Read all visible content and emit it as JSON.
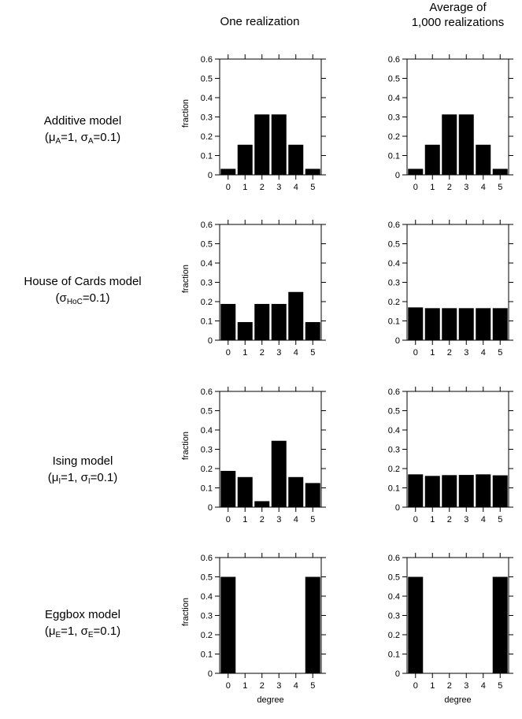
{
  "columns": [
    "One realization",
    "Average of\n1,000 realizations"
  ],
  "column_lines": [
    [
      "One realization"
    ],
    [
      "Average of",
      "1,000 realizations"
    ]
  ],
  "rows": [
    {
      "title": "Additive model",
      "params": [
        {
          "sym": "μ",
          "sub": "A",
          "val": "=1"
        },
        {
          "sym": "σ",
          "sub": "A",
          "val": "=0.1"
        }
      ]
    },
    {
      "title": "House of Cards model",
      "params": [
        {
          "sym": "σ",
          "sub": "HoC",
          "val": "=0.1"
        }
      ]
    },
    {
      "title": "Ising model",
      "params": [
        {
          "sym": "μ",
          "sub": "I",
          "val": "=1"
        },
        {
          "sym": "σ",
          "sub": "I",
          "val": "=0.1"
        }
      ]
    },
    {
      "title": "Eggbox model",
      "params": [
        {
          "sym": "μ",
          "sub": "E",
          "val": "=1"
        },
        {
          "sym": "σ",
          "sub": "E",
          "val": "=0.1"
        }
      ]
    }
  ],
  "chart_data": [
    {
      "type": "bar",
      "panel": "Additive model / One realization",
      "categories": [
        "0",
        "1",
        "2",
        "3",
        "4",
        "5"
      ],
      "values": [
        0.031,
        0.156,
        0.313,
        0.313,
        0.156,
        0.031
      ],
      "ylabel": "fraction",
      "xlabel": "",
      "ylim": [
        0,
        0.6
      ],
      "yticks": [
        "0",
        "0.1",
        "0.2",
        "0.3",
        "0.4",
        "0.5",
        "0.6"
      ]
    },
    {
      "type": "bar",
      "panel": "Additive model / Average of 1,000 realizations",
      "categories": [
        "0",
        "1",
        "2",
        "3",
        "4",
        "5"
      ],
      "values": [
        0.031,
        0.156,
        0.313,
        0.313,
        0.156,
        0.031
      ],
      "ylabel": "",
      "xlabel": "",
      "ylim": [
        0,
        0.6
      ],
      "yticks": [
        "0",
        "0.1",
        "0.2",
        "0.3",
        "0.4",
        "0.5",
        "0.6"
      ]
    },
    {
      "type": "bar",
      "panel": "House of Cards model / One realization",
      "categories": [
        "0",
        "1",
        "2",
        "3",
        "4",
        "5"
      ],
      "values": [
        0.188,
        0.094,
        0.188,
        0.188,
        0.25,
        0.094
      ],
      "ylabel": "fraction",
      "xlabel": "",
      "ylim": [
        0,
        0.6
      ],
      "yticks": [
        "0",
        "0.1",
        "0.2",
        "0.3",
        "0.4",
        "0.5",
        "0.6"
      ]
    },
    {
      "type": "bar",
      "panel": "House of Cards model / Average of 1,000 realizations",
      "categories": [
        "0",
        "1",
        "2",
        "3",
        "4",
        "5"
      ],
      "values": [
        0.17,
        0.166,
        0.166,
        0.166,
        0.166,
        0.166
      ],
      "ylabel": "",
      "xlabel": "",
      "ylim": [
        0,
        0.6
      ],
      "yticks": [
        "0",
        "0.1",
        "0.2",
        "0.3",
        "0.4",
        "0.5",
        "0.6"
      ]
    },
    {
      "type": "bar",
      "panel": "Ising model / One realization",
      "categories": [
        "0",
        "1",
        "2",
        "3",
        "4",
        "5"
      ],
      "values": [
        0.188,
        0.156,
        0.031,
        0.344,
        0.156,
        0.125
      ],
      "ylabel": "fraction",
      "xlabel": "",
      "ylim": [
        0,
        0.6
      ],
      "yticks": [
        "0",
        "0.1",
        "0.2",
        "0.3",
        "0.4",
        "0.5",
        "0.6"
      ]
    },
    {
      "type": "bar",
      "panel": "Ising model / Average of 1,000 realizations",
      "categories": [
        "0",
        "1",
        "2",
        "3",
        "4",
        "5"
      ],
      "values": [
        0.17,
        0.162,
        0.166,
        0.167,
        0.17,
        0.165
      ],
      "ylabel": "",
      "xlabel": "",
      "ylim": [
        0,
        0.6
      ],
      "yticks": [
        "0",
        "0.1",
        "0.2",
        "0.3",
        "0.4",
        "0.5",
        "0.6"
      ]
    },
    {
      "type": "bar",
      "panel": "Eggbox model / One realization",
      "categories": [
        "0",
        "1",
        "2",
        "3",
        "4",
        "5"
      ],
      "values": [
        0.5,
        0,
        0,
        0,
        0,
        0.5
      ],
      "ylabel": "fraction",
      "xlabel": "degree",
      "ylim": [
        0,
        0.6
      ],
      "yticks": [
        "0",
        "0.1",
        "0.2",
        "0.3",
        "0.4",
        "0.5",
        "0.6"
      ]
    },
    {
      "type": "bar",
      "panel": "Eggbox model / Average of 1,000 realizations",
      "categories": [
        "0",
        "1",
        "2",
        "3",
        "4",
        "5"
      ],
      "values": [
        0.5,
        0,
        0,
        0,
        0,
        0.5
      ],
      "ylabel": "",
      "xlabel": "degree",
      "ylim": [
        0,
        0.6
      ],
      "yticks": [
        "0",
        "0.1",
        "0.2",
        "0.3",
        "0.4",
        "0.5",
        "0.6"
      ]
    }
  ]
}
